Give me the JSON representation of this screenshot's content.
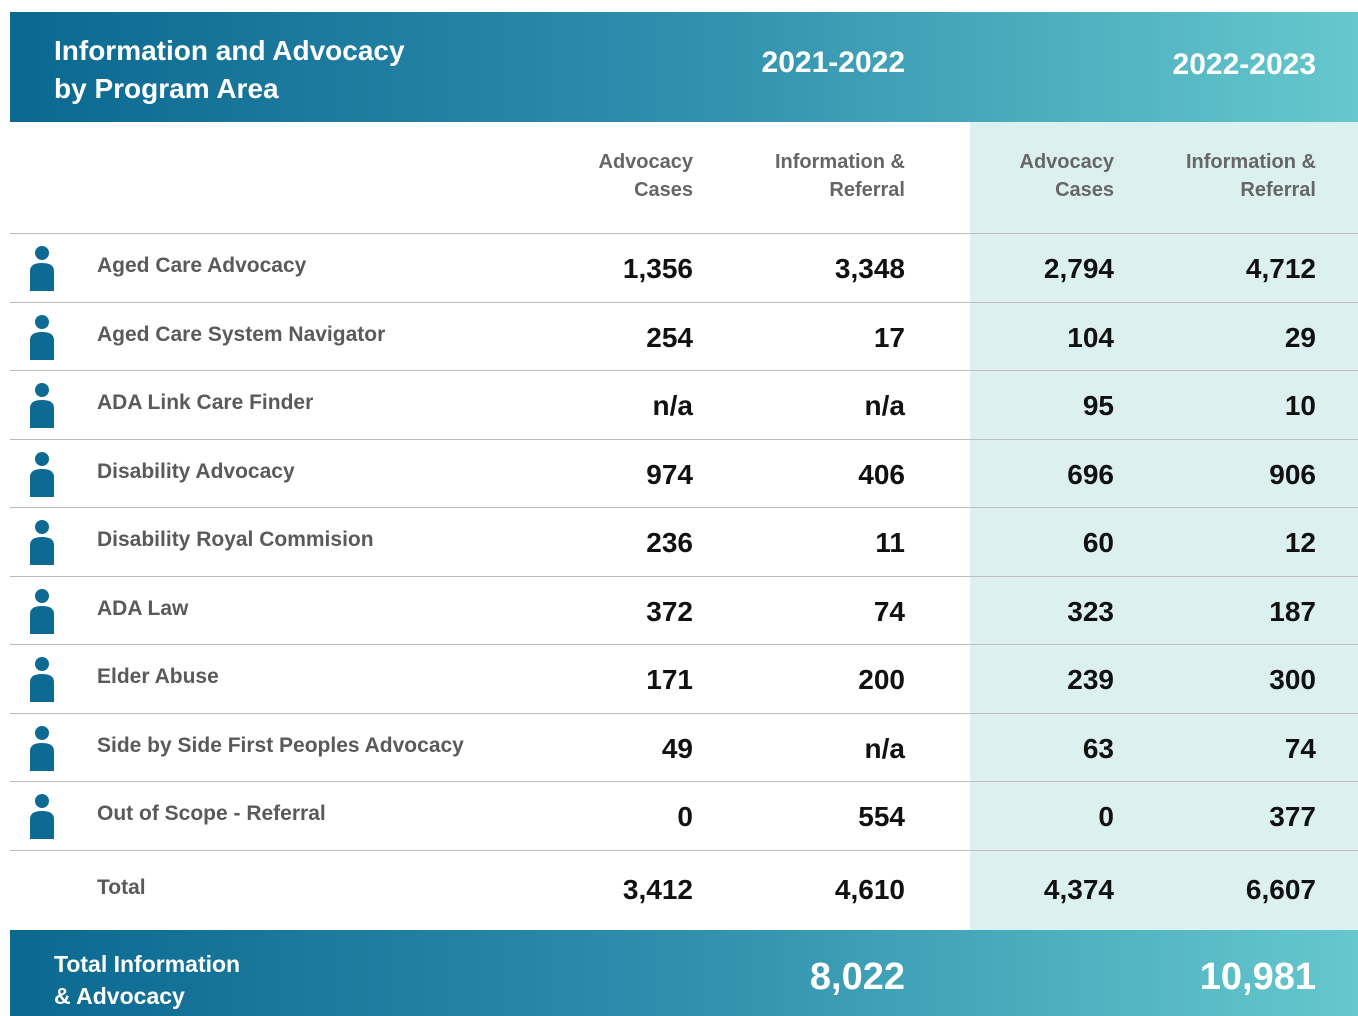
{
  "header": {
    "title_lines": [
      "Information and Advocacy",
      "by Program Area"
    ],
    "periods": [
      "2021-2022",
      "2022-2023"
    ]
  },
  "columns": [
    [
      "Advocacy",
      "Cases"
    ],
    [
      "Information &",
      "Referral"
    ],
    [
      "Advocacy",
      "Cases"
    ],
    [
      "Information &",
      "Referral"
    ]
  ],
  "table": {
    "rows": [
      [
        "Aged Care Advocacy",
        "1,356",
        "3,348",
        "2,794",
        "4,712"
      ],
      [
        "Aged Care System Navigator",
        "254",
        "17",
        "104",
        "29"
      ],
      [
        "ADA Link Care Finder",
        "n/a",
        "n/a",
        "95",
        "10"
      ],
      [
        "Disability Advocacy",
        "974",
        "406",
        "696",
        "906"
      ],
      [
        "Disability Royal Commision",
        "236",
        "11",
        "60",
        "12"
      ],
      [
        "ADA Law",
        "372",
        "74",
        "323",
        "187"
      ],
      [
        "Elder Abuse",
        "171",
        "200",
        "239",
        "300"
      ],
      [
        "Side by Side First Peoples Advocacy",
        "49",
        "n/a",
        "63",
        "74"
      ],
      [
        "Out of Scope - Referral",
        "0",
        "554",
        "0",
        "377"
      ]
    ],
    "total": [
      "Total",
      "3,412",
      "4,610",
      "4,374",
      "6,607"
    ]
  },
  "footer": {
    "label_lines": [
      "Total Information",
      "& Advocacy"
    ],
    "values": [
      "8,022",
      "10,981"
    ]
  }
}
